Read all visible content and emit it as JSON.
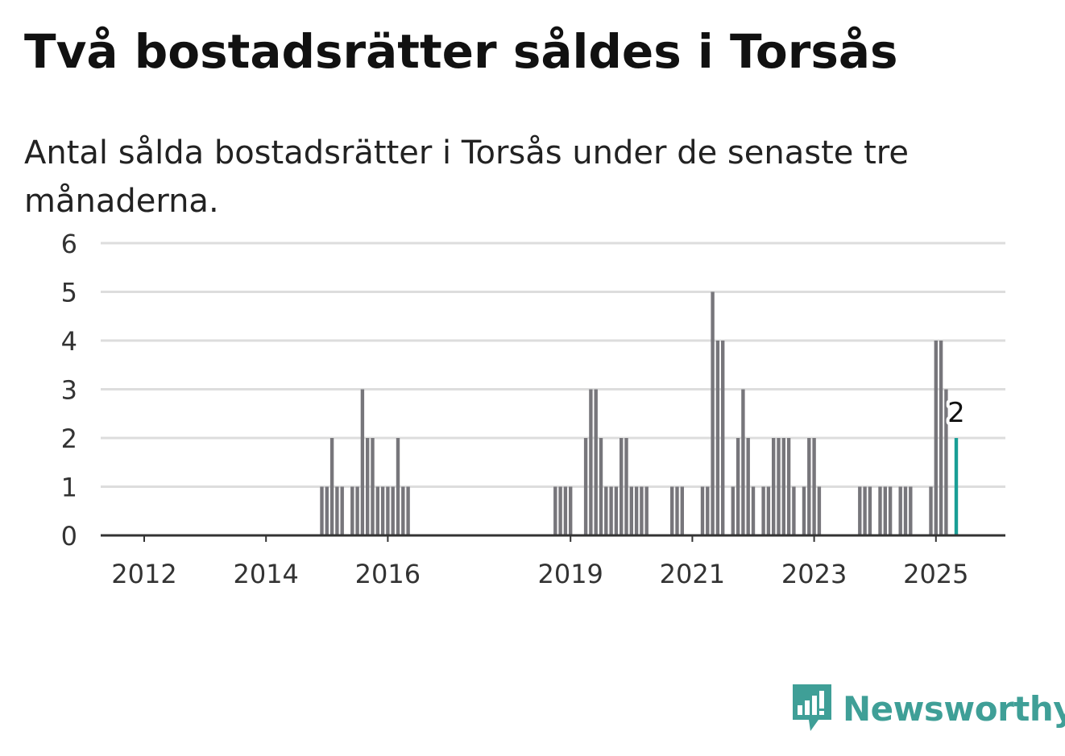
{
  "title": "Två bostadsrätter såldes i Torsås",
  "subtitle": "Antal sålda bostadsrätter i Torsås under de senaste tre månaderna.",
  "brand": {
    "name": "Newsworthy",
    "icon": "newsworthy-chart-icon",
    "color": "#3f9f97"
  },
  "colors": {
    "bar": "#77767b",
    "highlight": "#1a9e96",
    "grid": "#dddddd",
    "axis": "#333333"
  },
  "chart_data": {
    "type": "bar",
    "title": "Två bostadsrätter såldes i Torsås",
    "xlabel": "",
    "ylabel": "",
    "ylim": [
      0,
      6
    ],
    "yticks": [
      0,
      1,
      2,
      3,
      4,
      5,
      6
    ],
    "xticks": [
      "2012",
      "2014",
      "2016",
      "2019",
      "2021",
      "2023",
      "2025"
    ],
    "xlim": [
      "2011-01",
      "2026-01"
    ],
    "grid": true,
    "points": [
      {
        "x": "2014-12",
        "y": 1
      },
      {
        "x": "2015-01",
        "y": 1
      },
      {
        "x": "2015-02",
        "y": 2
      },
      {
        "x": "2015-03",
        "y": 1
      },
      {
        "x": "2015-04",
        "y": 1
      },
      {
        "x": "2015-06",
        "y": 1
      },
      {
        "x": "2015-07",
        "y": 1
      },
      {
        "x": "2015-08",
        "y": 3
      },
      {
        "x": "2015-09",
        "y": 2
      },
      {
        "x": "2015-10",
        "y": 2
      },
      {
        "x": "2015-11",
        "y": 1
      },
      {
        "x": "2015-12",
        "y": 1
      },
      {
        "x": "2016-01",
        "y": 1
      },
      {
        "x": "2016-02",
        "y": 1
      },
      {
        "x": "2016-03",
        "y": 2
      },
      {
        "x": "2016-04",
        "y": 1
      },
      {
        "x": "2016-05",
        "y": 1
      },
      {
        "x": "2018-10",
        "y": 1
      },
      {
        "x": "2018-11",
        "y": 1
      },
      {
        "x": "2018-12",
        "y": 1
      },
      {
        "x": "2019-01",
        "y": 1
      },
      {
        "x": "2019-04",
        "y": 2
      },
      {
        "x": "2019-05",
        "y": 3
      },
      {
        "x": "2019-06",
        "y": 3
      },
      {
        "x": "2019-07",
        "y": 2
      },
      {
        "x": "2019-08",
        "y": 1
      },
      {
        "x": "2019-09",
        "y": 1
      },
      {
        "x": "2019-10",
        "y": 1
      },
      {
        "x": "2019-11",
        "y": 2
      },
      {
        "x": "2019-12",
        "y": 2
      },
      {
        "x": "2020-01",
        "y": 1
      },
      {
        "x": "2020-02",
        "y": 1
      },
      {
        "x": "2020-03",
        "y": 1
      },
      {
        "x": "2020-04",
        "y": 1
      },
      {
        "x": "2020-09",
        "y": 1
      },
      {
        "x": "2020-10",
        "y": 1
      },
      {
        "x": "2020-11",
        "y": 1
      },
      {
        "x": "2021-03",
        "y": 1
      },
      {
        "x": "2021-04",
        "y": 1
      },
      {
        "x": "2021-05",
        "y": 5
      },
      {
        "x": "2021-06",
        "y": 4
      },
      {
        "x": "2021-07",
        "y": 4
      },
      {
        "x": "2021-09",
        "y": 1
      },
      {
        "x": "2021-10",
        "y": 2
      },
      {
        "x": "2021-11",
        "y": 3
      },
      {
        "x": "2021-12",
        "y": 2
      },
      {
        "x": "2022-01",
        "y": 1
      },
      {
        "x": "2022-03",
        "y": 1
      },
      {
        "x": "2022-04",
        "y": 1
      },
      {
        "x": "2022-05",
        "y": 2
      },
      {
        "x": "2022-06",
        "y": 2
      },
      {
        "x": "2022-07",
        "y": 2
      },
      {
        "x": "2022-08",
        "y": 2
      },
      {
        "x": "2022-09",
        "y": 1
      },
      {
        "x": "2022-11",
        "y": 1
      },
      {
        "x": "2022-12",
        "y": 2
      },
      {
        "x": "2023-01",
        "y": 2
      },
      {
        "x": "2023-02",
        "y": 1
      },
      {
        "x": "2023-10",
        "y": 1
      },
      {
        "x": "2023-11",
        "y": 1
      },
      {
        "x": "2023-12",
        "y": 1
      },
      {
        "x": "2024-02",
        "y": 1
      },
      {
        "x": "2024-03",
        "y": 1
      },
      {
        "x": "2024-04",
        "y": 1
      },
      {
        "x": "2024-06",
        "y": 1
      },
      {
        "x": "2024-07",
        "y": 1
      },
      {
        "x": "2024-08",
        "y": 1
      },
      {
        "x": "2024-12",
        "y": 1
      },
      {
        "x": "2025-01",
        "y": 4
      },
      {
        "x": "2025-02",
        "y": 4
      },
      {
        "x": "2025-03",
        "y": 3
      },
      {
        "x": "2025-05",
        "y": 2
      }
    ],
    "highlight": {
      "x": "2025-05",
      "y": 2,
      "label": "2"
    }
  }
}
